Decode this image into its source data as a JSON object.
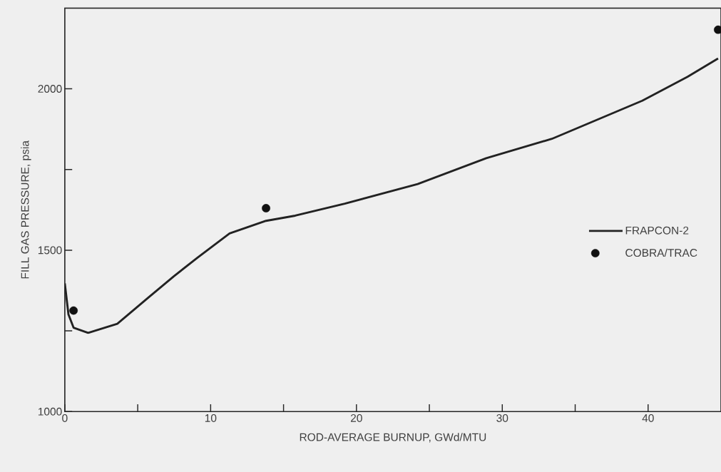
{
  "chart_data": {
    "type": "line",
    "xlabel": "ROD-AVERAGE BURNUP, GWd/MTU",
    "ylabel": "FILL GAS PRESSURE, psia",
    "xlim": [
      0,
      45
    ],
    "ylim": [
      1000,
      2250
    ],
    "xticks": [
      0,
      {
        "value": 5,
        "label": null
      },
      10,
      {
        "value": 15,
        "label": null
      },
      20,
      {
        "value": 25,
        "label": null
      },
      30,
      {
        "value": 35,
        "label": null
      },
      40
    ],
    "yticks": [
      1000,
      {
        "value": 1250,
        "label": null
      },
      1500,
      {
        "value": 1750,
        "label": null
      },
      2000
    ],
    "grid": false,
    "legend": "right",
    "series": [
      {
        "name": "FRAPCON-2",
        "color": "#222222",
        "marker": "none",
        "line_style": "solid",
        "x": [
          0,
          0.25,
          0.6,
          1.6,
          3.6,
          5.8,
          7.5,
          9.1,
          11.3,
          13.8,
          15.8,
          19.2,
          24.2,
          28.9,
          33.4,
          39.6,
          42.7,
          44.8
        ],
        "values": [
          1397,
          1301,
          1260,
          1244,
          1272,
          1356,
          1420,
          1477,
          1552,
          1591,
          1607,
          1644,
          1705,
          1785,
          1845,
          1963,
          2037,
          2094
        ]
      },
      {
        "name": "COBRA/TRAC",
        "type": "scatter",
        "color": "#111111",
        "marker": "circle",
        "x": [
          0.6,
          13.8,
          44.8
        ],
        "values": [
          1313,
          1630,
          2183
        ]
      }
    ]
  }
}
